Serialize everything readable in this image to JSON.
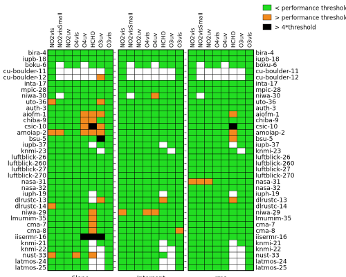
{
  "chart_data": {
    "type": "heatmap",
    "legend": {
      "position": "top-right",
      "entries": [
        {
          "label": "< performance threshold",
          "color": "#22dd22"
        },
        {
          "label": "> performance threshold",
          "color": "#f28a1e"
        },
        {
          "label": "> 4*threshold",
          "color": "#000000"
        }
      ]
    },
    "colors": {
      "W": "#ffffff",
      "G": "#22dd22",
      "O": "#f28a1e",
      "B": "#000000"
    },
    "columns": [
      "NO2vis",
      "NO2visSmall",
      "NO2uv",
      "O4vis",
      "O4uv",
      "HCHO",
      "O3uv",
      "O3vis"
    ],
    "rows": [
      "bira-4",
      "iupb-18",
      "boku-6",
      "cu-boulder-11",
      "cu-boulder-12",
      "inta-17",
      "mpic-28",
      "niwa-30",
      "uto-36",
      "auth-3",
      "aiofm-1",
      "chiba-9",
      "csic-10",
      "amoiap-2",
      "bsu-5",
      "iupb-37",
      "knmi-23",
      "luftblick-26",
      "luftblick-260",
      "luftblick-27",
      "luftblick-270",
      "nasa-31",
      "nasa-32",
      "iuph-19",
      "dlrustc-13",
      "dlrustc-14",
      "niwa-29",
      "lmumim-35",
      "cma-7",
      "cma-8",
      "iisermr-16",
      "knmi-21",
      "knmi-22",
      "nust-33",
      "latmos-24",
      "latmos-25"
    ],
    "panels": [
      {
        "name": "Slope",
        "cells": [
          "GGGGGGGG",
          "GGGGGGGG",
          "GWGGWGGG",
          "GWWWWWWG",
          "GWWWWWOG",
          "GGGGGGGG",
          "GGGGGGGG",
          "GWGGGGGG",
          "OGGGGGOG",
          "GGGGGGGG",
          "GGGGOOOG",
          "GGGGOOGG",
          "GGGGOBOG",
          "OOGGOOOG",
          "GGGGGGBG",
          "GGGGGWGG",
          "GGGGGGWG",
          "GGGGGGGG",
          "GGGGGGGG",
          "GGGGGGGG",
          "GGGGGGGG",
          "GGGGGGGG",
          "GGGGGGGG",
          "GGGGGWGG",
          "GGGGGWOG",
          "OGGGGGGG",
          "GGGGGOGG",
          "GGGGGOGG",
          "GGGGGOGG",
          "GGGGGOGG",
          "GGGGBBBG",
          "GGGGGWGG",
          "GGGGGWWG",
          "OGGOGOWG",
          "GGGGGWWG",
          "GGGGGWWG"
        ]
      },
      {
        "name": "Intercept",
        "cells": [
          "GGGGGGGG",
          "GGGGGGGG",
          "GWGGWGGG",
          "GWWWWWWG",
          "GWWWWWWG",
          "GGGGGGGG",
          "GGGGGGGG",
          "GWGGOGGG",
          "GGGGGGGG",
          "GGGGGGGG",
          "GGGGGGGG",
          "GGGGGGGG",
          "GGGGGGGG",
          "GGGGGGGG",
          "GGGGGGGG",
          "GGGGGWGG",
          "GGGGGGWG",
          "GGGGGGGG",
          "GGGGGGGG",
          "GGGGGGGG",
          "GGGGGGGG",
          "GGGGGGGG",
          "GGGGGGGG",
          "GGGGGWGG",
          "GGGGGOGG",
          "GGGGGGGG",
          "OGGOOGGG",
          "GGGGGGGG",
          "GGGGGGGG",
          "GGGGGGGO",
          "GGGGGGGG",
          "GGGGGWGG",
          "GGGGGWWG",
          "GGGGGGWG",
          "GGGGGWWG",
          "GGGGGWWG"
        ]
      },
      {
        "name": "rms",
        "cells": [
          "GGGGGGGG",
          "GGGGGGGG",
          "GWGGWGGG",
          "GWWWWWWG",
          "GWWWWWWG",
          "GGGGGGGG",
          "GGGGGGGG",
          "GWGGGGGG",
          "GGGGGGGG",
          "GGGGGGGG",
          "GGGGGOGG",
          "GGGGGGGG",
          "GGGGGBGG",
          "GGGGGOGG",
          "GGGGGOGG",
          "GGGGGWGG",
          "GGGGGGWG",
          "GGGGGGGG",
          "GGGGGGGG",
          "GGGGGGGG",
          "GGGGGGGG",
          "OOOGGGGG",
          "GGGGGGGG",
          "GGGGGWGG",
          "GGGGGOGG",
          "GGGGGGGG",
          "GGGGGGGG",
          "GGGGGGGG",
          "GGGGGGGG",
          "GGGGGGGG",
          "GGGGGGGG",
          "GGGGGWGG",
          "GGGGGWWG",
          "GGGGGWWG",
          "GGGGGWWG",
          "GGGGGWWG"
        ]
      }
    ]
  }
}
